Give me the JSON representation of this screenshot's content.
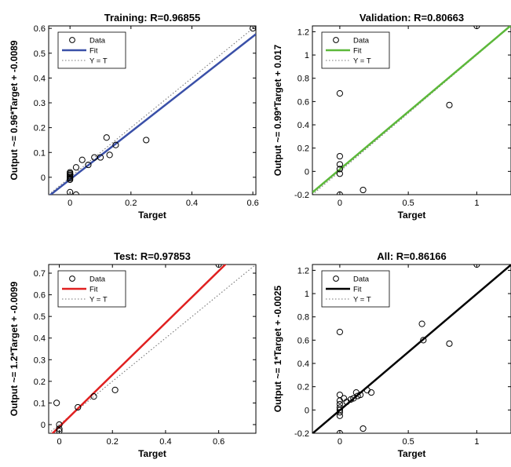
{
  "chart_data": [
    {
      "type": "scatter",
      "title": "Training: R=0.96855",
      "xlabel": "Target",
      "ylabel": "Output ~= 0.96*Target + -0.0089",
      "xlim": [
        -0.07,
        0.61
      ],
      "ylim": [
        -0.07,
        0.61
      ],
      "xticks": [
        0,
        0.2,
        0.4,
        0.6
      ],
      "xtick_labels": [
        "0",
        "0.2",
        "0.4",
        "0.6"
      ],
      "yticks": [
        0,
        0.1,
        0.2,
        0.3,
        0.4,
        0.5,
        0.6
      ],
      "ytick_labels": [
        "0",
        "0.1",
        "0.2",
        "0.3",
        "0.4",
        "0.5",
        "0.6"
      ],
      "fit": {
        "slope": 0.96,
        "intercept": -0.0089
      },
      "fit_color": "#3a50a8",
      "legend": [
        "Data",
        "Fit",
        "Y = T"
      ],
      "legend_position": "top-left",
      "points": [
        [
          0,
          0
        ],
        [
          0,
          0.005
        ],
        [
          0,
          0.01
        ],
        [
          0,
          0.015
        ],
        [
          0,
          0.02
        ],
        [
          0,
          -0.005
        ],
        [
          0,
          -0.01
        ],
        [
          0,
          -0.06
        ],
        [
          0.02,
          -0.07
        ],
        [
          0.02,
          0.04
        ],
        [
          0.04,
          0.07
        ],
        [
          0.06,
          0.05
        ],
        [
          0.08,
          0.08
        ],
        [
          0.1,
          0.08
        ],
        [
          0.12,
          0.16
        ],
        [
          0.13,
          0.09
        ],
        [
          0.15,
          0.13
        ],
        [
          0.25,
          0.15
        ],
        [
          0.6,
          0.6
        ]
      ]
    },
    {
      "type": "scatter",
      "title": "Validation: R=0.80663",
      "xlabel": "Target",
      "ylabel": "Output ~= 0.99*Target + 0.017",
      "xlim": [
        -0.2,
        1.25
      ],
      "ylim": [
        -0.2,
        1.25
      ],
      "xticks": [
        0,
        0.5,
        1
      ],
      "xtick_labels": [
        "0",
        "0.5",
        "1"
      ],
      "yticks": [
        -0.2,
        0,
        0.2,
        0.4,
        0.6,
        0.8,
        1,
        1.2
      ],
      "ytick_labels": [
        "-0.2",
        "0",
        "0.2",
        "0.4",
        "0.6",
        "0.8",
        "1",
        "1.2"
      ],
      "fit": {
        "slope": 0.99,
        "intercept": 0.017
      },
      "fit_color": "#5cb83a",
      "legend": [
        "Data",
        "Fit",
        "Y = T"
      ],
      "legend_position": "top-left",
      "points": [
        [
          0,
          0.67
        ],
        [
          0,
          0.13
        ],
        [
          0,
          0.06
        ],
        [
          0,
          0.02
        ],
        [
          0,
          -0.02
        ],
        [
          0,
          -0.2
        ],
        [
          0.17,
          -0.16
        ],
        [
          0.8,
          0.57
        ],
        [
          1,
          1.25
        ]
      ]
    },
    {
      "type": "scatter",
      "title": "Test: R=0.97853",
      "xlabel": "Target",
      "ylabel": "Output ~= 1.2*Target + -0.0099",
      "xlim": [
        -0.04,
        0.74
      ],
      "ylim": [
        -0.04,
        0.74
      ],
      "xticks": [
        0,
        0.2,
        0.4,
        0.6
      ],
      "xtick_labels": [
        "0",
        "0.2",
        "0.4",
        "0.6"
      ],
      "yticks": [
        0,
        0.1,
        0.2,
        0.3,
        0.4,
        0.5,
        0.6,
        0.7
      ],
      "ytick_labels": [
        "0",
        "0.1",
        "0.2",
        "0.3",
        "0.4",
        "0.5",
        "0.6",
        "0.7"
      ],
      "fit": {
        "slope": 1.2,
        "intercept": -0.0099
      },
      "fit_color": "#e02020",
      "legend": [
        "Data",
        "Fit",
        "Y = T"
      ],
      "legend_position": "top-left",
      "points": [
        [
          -0.01,
          0.1
        ],
        [
          0,
          0
        ],
        [
          0,
          -0.02
        ],
        [
          0,
          -0.03
        ],
        [
          0.07,
          0.08
        ],
        [
          0.13,
          0.13
        ],
        [
          0.21,
          0.16
        ],
        [
          0.6,
          0.74
        ]
      ]
    },
    {
      "type": "scatter",
      "title": "All: R=0.86166",
      "xlabel": "Target",
      "ylabel": "Output ~= 1*Target + -0.0025",
      "xlim": [
        -0.2,
        1.25
      ],
      "ylim": [
        -0.2,
        1.25
      ],
      "xticks": [
        0,
        0.5,
        1
      ],
      "xtick_labels": [
        "0",
        "0.5",
        "1"
      ],
      "yticks": [
        -0.2,
        0,
        0.2,
        0.4,
        0.6,
        0.8,
        1,
        1.2
      ],
      "ytick_labels": [
        "-0.2",
        "0",
        "0.2",
        "0.4",
        "0.6",
        "0.8",
        "1",
        "1.2"
      ],
      "fit": {
        "slope": 1,
        "intercept": -0.0025
      },
      "fit_color": "#000000",
      "legend": [
        "Data",
        "Fit",
        "Y = T"
      ],
      "legend_position": "top-left",
      "points": [
        [
          0,
          0.67
        ],
        [
          0,
          0.13
        ],
        [
          0,
          0.08
        ],
        [
          0,
          0.05
        ],
        [
          0,
          0.02
        ],
        [
          0,
          0
        ],
        [
          0,
          -0.02
        ],
        [
          0,
          -0.05
        ],
        [
          0,
          -0.2
        ],
        [
          0.03,
          0.1
        ],
        [
          0.05,
          0.07
        ],
        [
          0.08,
          0.09
        ],
        [
          0.1,
          0.1
        ],
        [
          0.12,
          0.15
        ],
        [
          0.13,
          0.12
        ],
        [
          0.15,
          0.13
        ],
        [
          0.17,
          -0.16
        ],
        [
          0.2,
          0.17
        ],
        [
          0.23,
          0.15
        ],
        [
          0.6,
          0.74
        ],
        [
          0.61,
          0.6
        ],
        [
          0.8,
          0.57
        ],
        [
          1,
          1.25
        ]
      ]
    }
  ]
}
